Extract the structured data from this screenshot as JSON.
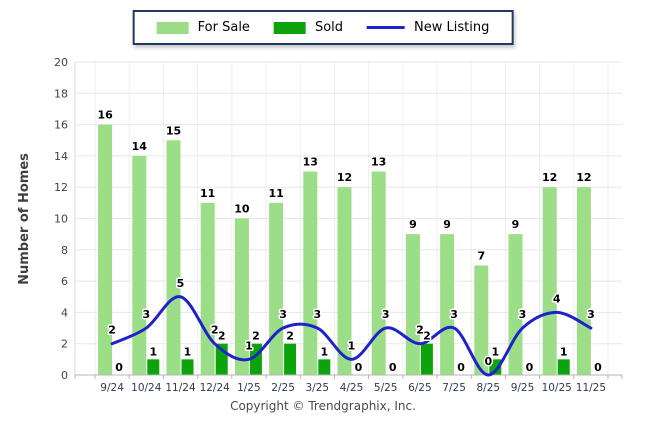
{
  "legend": {
    "border_color": "#1F3864",
    "position": "top-center"
  },
  "footer": {
    "copyright": "Copyright © Trendgraphix, Inc."
  },
  "chart_data": {
    "type": "bar",
    "subtype": "grouped bars with smooth line overlay",
    "title": "",
    "xlabel": "",
    "ylabel": "Number of Homes",
    "categories": [
      "9/24",
      "10/24",
      "11/24",
      "12/24",
      "1/25",
      "2/25",
      "3/25",
      "4/25",
      "5/25",
      "6/25",
      "7/25",
      "8/25",
      "9/25",
      "10/25",
      "11/25"
    ],
    "series": [
      {
        "name": "For Sale",
        "type": "bar",
        "color": "#9CDE87",
        "values": [
          16,
          14,
          15,
          11,
          10,
          11,
          13,
          12,
          13,
          9,
          9,
          7,
          9,
          12,
          12
        ]
      },
      {
        "name": "Sold",
        "type": "bar",
        "color": "#0CA30C",
        "values": [
          0,
          1,
          1,
          2,
          2,
          2,
          1,
          0,
          0,
          2,
          0,
          1,
          0,
          1,
          0
        ]
      },
      {
        "name": "New Listing",
        "type": "line",
        "color": "#2121CC",
        "values": [
          2,
          3,
          5,
          2,
          1,
          3,
          3,
          1,
          3,
          2,
          3,
          0,
          3,
          4,
          3
        ]
      }
    ],
    "ylim": [
      0,
      20
    ],
    "ytick_step": 2,
    "yticks": [
      0,
      2,
      4,
      6,
      8,
      10,
      12,
      14,
      16,
      18,
      20
    ],
    "grid": true,
    "value_labels": true,
    "legend_position": "top"
  }
}
